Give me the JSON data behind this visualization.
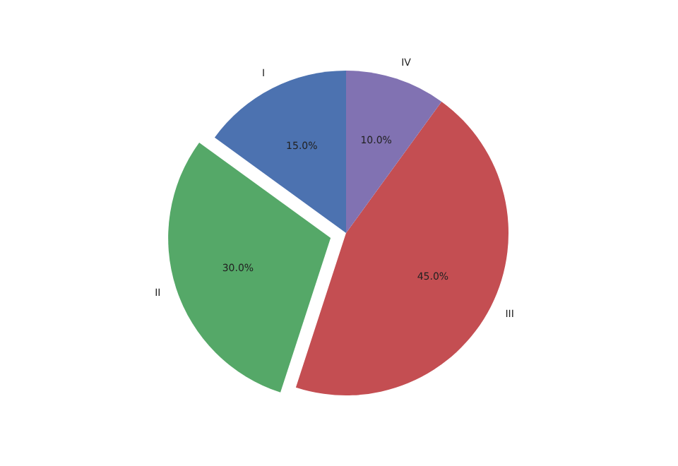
{
  "chart_data": {
    "type": "pie",
    "categories": [
      "I",
      "II",
      "III",
      "IV"
    ],
    "values": [
      15,
      30,
      45,
      10
    ],
    "colors": [
      "#4c72b0",
      "#55a868",
      "#c44e52",
      "#8172b2"
    ],
    "value_labels": [
      "15.0%",
      "30.0%",
      "45.0%",
      "10.0%"
    ]
  }
}
